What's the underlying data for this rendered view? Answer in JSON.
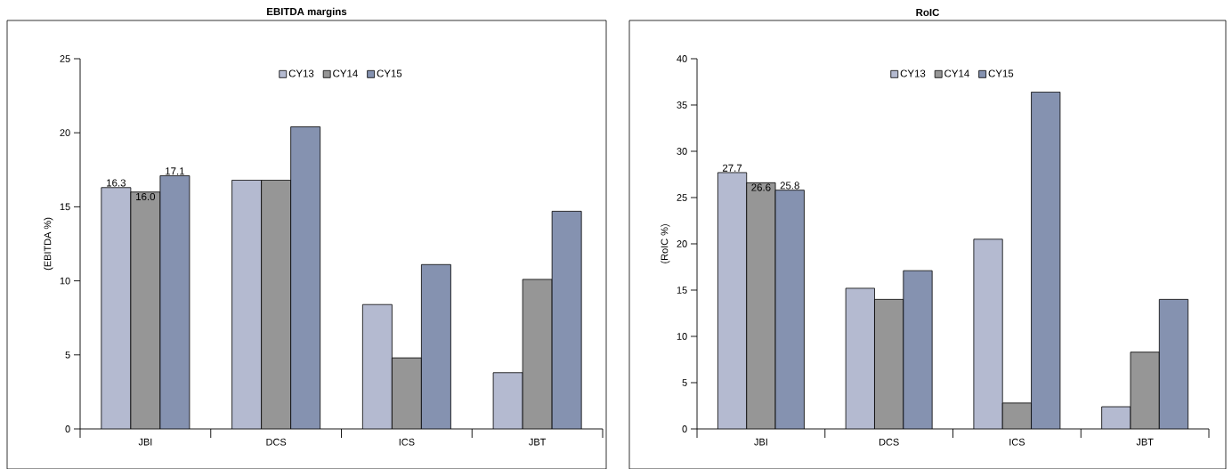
{
  "chart_data": [
    {
      "type": "bar",
      "title": "EBITDA margins",
      "ylabel": "(EBITDA %)",
      "categories": [
        "JBI",
        "DCS",
        "ICS",
        "JBT"
      ],
      "series": [
        {
          "name": "CY13",
          "color": "#b4bad0",
          "values": [
            16.3,
            16.8,
            8.4,
            3.8
          ],
          "value_labels": [
            "16.3",
            null,
            null,
            null
          ]
        },
        {
          "name": "CY14",
          "color": "#969696",
          "values": [
            16.0,
            16.8,
            4.8,
            10.1
          ],
          "value_labels": [
            "16.0",
            null,
            null,
            null
          ]
        },
        {
          "name": "CY15",
          "color": "#8592b0",
          "values": [
            17.1,
            20.4,
            11.1,
            14.7
          ],
          "value_labels": [
            "17.1",
            null,
            null,
            null
          ]
        }
      ],
      "ylim": [
        0,
        25
      ],
      "yticks": [
        0,
        5,
        10,
        15,
        20,
        25
      ],
      "legend": "top"
    },
    {
      "type": "bar",
      "title": "RoIC",
      "ylabel": "(RoIC %)",
      "categories": [
        "JBI",
        "DCS",
        "ICS",
        "JBT"
      ],
      "series": [
        {
          "name": "CY13",
          "color": "#b4bad0",
          "values": [
            27.7,
            15.2,
            20.5,
            2.4
          ],
          "value_labels": [
            "27.7",
            null,
            null,
            null
          ]
        },
        {
          "name": "CY14",
          "color": "#969696",
          "values": [
            26.6,
            14.0,
            2.8,
            8.3
          ],
          "value_labels": [
            "26.6",
            null,
            null,
            null
          ]
        },
        {
          "name": "CY15",
          "color": "#8592b0",
          "values": [
            25.8,
            17.1,
            36.4,
            14.0
          ],
          "value_labels": [
            "25.8",
            null,
            null,
            null
          ]
        }
      ],
      "ylim": [
        0,
        40
      ],
      "yticks": [
        0,
        5,
        10,
        15,
        20,
        25,
        30,
        35,
        40
      ],
      "legend": "top"
    }
  ]
}
